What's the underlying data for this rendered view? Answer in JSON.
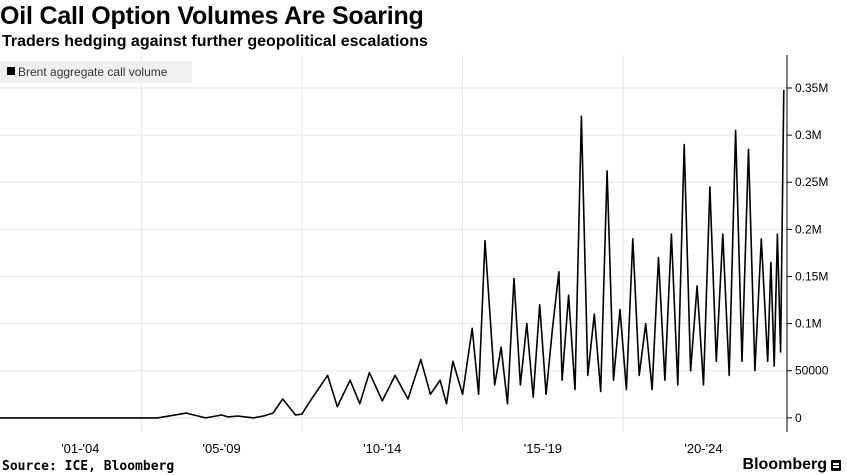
{
  "header": {
    "title": "Oil Call Option Volumes Are Soaring",
    "subtitle": "Traders hedging against further geopolitical escalations"
  },
  "footer": {
    "source": "Source: ICE, Bloomberg",
    "brand": "Bloomberg"
  },
  "chart_data": {
    "type": "line",
    "title": "Oil Call Option Volumes Are Soaring",
    "subtitle": "Traders hedging against further geopolitical escalations",
    "xlabel": "",
    "ylabel": "",
    "legend": {
      "entries": [
        "Brent aggregate call volume"
      ],
      "placement": "top-left"
    },
    "grid": true,
    "x_tick_labels": [
      "'01-'04",
      "'05-'09",
      "'10-'14",
      "'15-'19",
      "'20-'24"
    ],
    "y_tick_labels": [
      "0",
      "50000",
      "0.1M",
      "0.15M",
      "0.2M",
      "0.25M",
      "0.3M",
      "0.35M"
    ],
    "y_ticks": [
      0,
      50000,
      100000,
      150000,
      200000,
      250000,
      300000,
      350000
    ],
    "ylim": [
      -15000,
      385000
    ],
    "xlim": [
      2000.1,
      2024.6
    ],
    "colors": {
      "line": "#000000",
      "grid": "#e6e6e6",
      "legend_bg": "#f0f0f0"
    },
    "series": [
      {
        "name": "Brent aggregate call volume",
        "x": [
          2000.1,
          2001.0,
          2002.0,
          2003.0,
          2004.0,
          2005.0,
          2005.9,
          2006.5,
          2007.0,
          2007.2,
          2007.5,
          2008.0,
          2008.3,
          2008.6,
          2008.9,
          2009.3,
          2009.5,
          2009.7,
          2010.0,
          2010.3,
          2010.6,
          2011.0,
          2011.3,
          2011.6,
          2012.0,
          2012.4,
          2012.8,
          2013.2,
          2013.5,
          2013.8,
          2014.0,
          2014.2,
          2014.5,
          2014.8,
          2015.0,
          2015.2,
          2015.5,
          2015.7,
          2015.9,
          2016.1,
          2016.3,
          2016.5,
          2016.7,
          2016.9,
          2017.1,
          2017.3,
          2017.5,
          2017.6,
          2017.8,
          2018.0,
          2018.2,
          2018.4,
          2018.6,
          2018.8,
          2019.0,
          2019.2,
          2019.4,
          2019.6,
          2019.8,
          2020.0,
          2020.2,
          2020.4,
          2020.6,
          2020.8,
          2021.0,
          2021.2,
          2021.4,
          2021.6,
          2021.8,
          2022.0,
          2022.2,
          2022.4,
          2022.6,
          2022.8,
          2023.0,
          2023.2,
          2023.4,
          2023.6,
          2023.8,
          2024.0,
          2024.1,
          2024.2,
          2024.3,
          2024.4,
          2024.5
        ],
        "values": [
          0,
          0,
          0,
          0,
          0,
          0,
          5000,
          0,
          3000,
          1000,
          2000,
          0,
          2000,
          5000,
          20000,
          3000,
          4000,
          15000,
          30000,
          45000,
          12000,
          40000,
          15000,
          48000,
          18000,
          45000,
          20000,
          62000,
          25000,
          40000,
          15000,
          60000,
          25000,
          95000,
          25000,
          188000,
          35000,
          75000,
          15000,
          148000,
          35000,
          100000,
          22000,
          120000,
          25000,
          95000,
          155000,
          40000,
          130000,
          30000,
          320000,
          45000,
          110000,
          28000,
          262000,
          40000,
          115000,
          30000,
          190000,
          45000,
          100000,
          30000,
          170000,
          40000,
          195000,
          35000,
          290000,
          50000,
          140000,
          35000,
          245000,
          60000,
          195000,
          45000,
          305000,
          60000,
          285000,
          50000,
          190000,
          60000,
          165000,
          55000,
          195000,
          70000,
          348000
        ]
      }
    ]
  }
}
